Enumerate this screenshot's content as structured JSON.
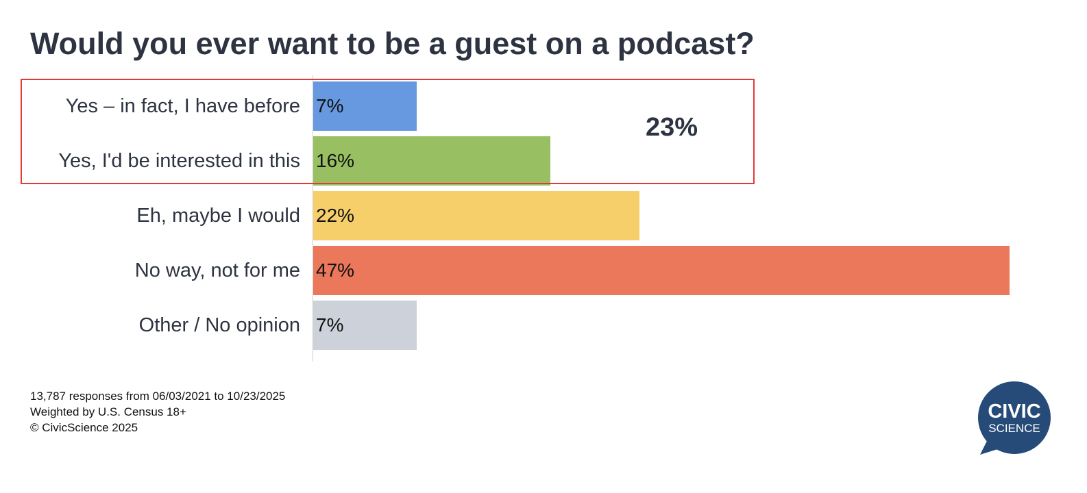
{
  "chart_data": {
    "type": "bar",
    "orientation": "horizontal",
    "title": "Would you ever want to be a guest on a podcast?",
    "categories": [
      "Yes – in fact, I have before",
      "Yes, I'd be interested in this",
      "Eh, maybe I would",
      "No way, not for me",
      "Other / No opinion"
    ],
    "values": [
      7,
      16,
      22,
      47,
      7
    ],
    "value_labels": [
      "7%",
      "16%",
      "22%",
      "47%",
      "7%"
    ],
    "colors": [
      "#6699e0",
      "#98c062",
      "#f6cf6b",
      "#eb785b",
      "#cdd1d9"
    ],
    "xlim": [
      0,
      47
    ],
    "highlight": {
      "rows": [
        0,
        1
      ],
      "label": "23%",
      "color": "#e53935"
    }
  },
  "footer": {
    "line1": "13,787 responses from 06/03/2021 to 10/23/2025",
    "line2": "Weighted by U.S. Census 18+",
    "line3": "© CivicScience 2025"
  },
  "logo": {
    "line1": "CIVIC",
    "line2": "SCIENCE",
    "color": "#264b78"
  }
}
